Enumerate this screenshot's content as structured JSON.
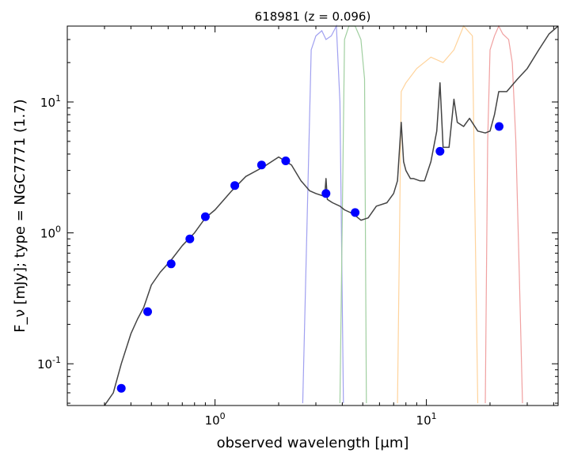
{
  "chart_data": {
    "type": "scatter",
    "title": "618981 (z = 0.096)",
    "xlabel": "observed wavelength [μm]",
    "ylabel": "F_ν [mJy];  type = NGC7771 (1.7)",
    "xscale": "log",
    "yscale": "log",
    "xlim": [
      0.2,
      42
    ],
    "ylim": [
      0.048,
      38
    ],
    "grid": false,
    "x_ticks": [
      {
        "v": 1,
        "label": "10^0"
      },
      {
        "v": 10,
        "label": "10^1"
      }
    ],
    "y_ticks": [
      {
        "v": 0.1,
        "label": "10^-1"
      },
      {
        "v": 1,
        "label": "10^0"
      },
      {
        "v": 10,
        "label": "10^1"
      }
    ],
    "series": [
      {
        "kind": "photometry",
        "color": "#0000ff",
        "x": [
          0.36,
          0.48,
          0.62,
          0.76,
          0.9,
          1.24,
          1.66,
          2.16,
          3.35,
          4.6,
          11.6,
          22.1
        ],
        "y": [
          0.065,
          0.25,
          0.58,
          0.9,
          1.33,
          2.3,
          3.3,
          3.55,
          2.0,
          1.43,
          4.2,
          6.5
        ]
      },
      {
        "kind": "template",
        "color": "#444444",
        "x": [
          0.3,
          0.33,
          0.36,
          0.4,
          0.43,
          0.46,
          0.5,
          0.55,
          0.62,
          0.7,
          0.8,
          0.9,
          1.0,
          1.2,
          1.4,
          1.7,
          2.0,
          2.3,
          2.55,
          2.8,
          3.0,
          3.3,
          3.35,
          3.4,
          3.6,
          3.9,
          4.1,
          4.5,
          4.9,
          5.3,
          5.8,
          6.5,
          7.0,
          7.3,
          7.6,
          7.8,
          8.0,
          8.4,
          8.7,
          9.3,
          9.8,
          10.5,
          11.2,
          11.6,
          12.0,
          12.8,
          13.5,
          14.0,
          15.0,
          16.0,
          17.5,
          19.0,
          20.0,
          21.0,
          22.0,
          24.0,
          27.0,
          30.0,
          34.0,
          38.0,
          42.0
        ],
        "y": [
          0.035,
          0.06,
          0.1,
          0.17,
          0.22,
          0.27,
          0.4,
          0.5,
          0.62,
          0.8,
          1.0,
          1.3,
          1.5,
          2.1,
          2.7,
          3.2,
          3.8,
          3.3,
          2.5,
          2.1,
          2.0,
          1.9,
          2.6,
          1.8,
          1.7,
          1.6,
          1.5,
          1.4,
          1.25,
          1.3,
          1.6,
          1.7,
          2.0,
          2.5,
          7.0,
          3.5,
          3.0,
          2.6,
          2.6,
          2.5,
          2.5,
          3.5,
          6.0,
          14.0,
          4.5,
          4.5,
          10.5,
          7.0,
          6.5,
          7.5,
          6.0,
          5.8,
          6.0,
          8.0,
          12.0,
          12.0,
          15.0,
          18.0,
          25.0,
          33.0,
          40.0
        ]
      },
      {
        "kind": "filter",
        "color": "#a0a0f0",
        "x": [
          2.6,
          2.85,
          3.0,
          3.2,
          3.35,
          3.55,
          3.75,
          3.9,
          4.05
        ],
        "y": [
          0.05,
          25,
          32,
          35,
          30,
          32,
          38,
          10,
          0.05
        ]
      },
      {
        "kind": "filter",
        "color": "#a0cfa0",
        "x": [
          3.9,
          4.1,
          4.3,
          4.6,
          4.9,
          5.1,
          5.2
        ],
        "y": [
          0.05,
          30,
          38,
          38,
          30,
          15,
          0.05
        ]
      },
      {
        "kind": "filter",
        "color": "#ffd39b",
        "x": [
          7.3,
          7.6,
          8.0,
          9.0,
          10.5,
          12.0,
          13.5,
          15.0,
          16.5,
          17.5
        ],
        "y": [
          0.05,
          12,
          14,
          18,
          22,
          20,
          25,
          38,
          32,
          0.05
        ]
      },
      {
        "kind": "filter",
        "color": "#f0a0a0",
        "x": [
          19.0,
          19.5,
          20.0,
          21.0,
          22.0,
          23.0,
          24.5,
          25.5,
          26.5,
          27.5,
          28.5
        ],
        "y": [
          0.05,
          5,
          25,
          32,
          38,
          33,
          30,
          20,
          5,
          0.5,
          0.05
        ]
      }
    ]
  }
}
